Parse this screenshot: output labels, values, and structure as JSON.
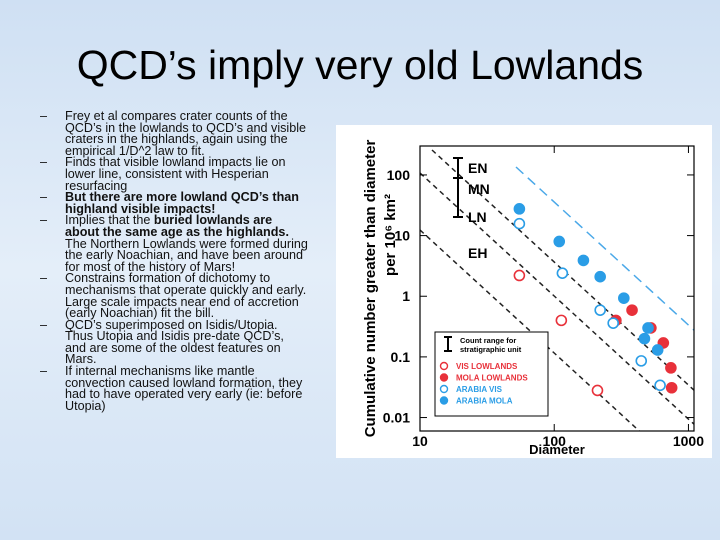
{
  "slide": {
    "title": "QCD’s imply very old Lowlands",
    "bullets": [
      [
        {
          "text": "Frey et al compares crater counts of the QCD’s in the lowlands to QCD’s and visible craters in the highlands, again using the empirical 1/D^2 law to fit."
        }
      ],
      [
        {
          "text": "Finds that visible lowland impacts lie on lower line, consistent with Hesperian resurfacing"
        }
      ],
      [
        {
          "text": "But there are more lowland QCD’s than highland visible impacts!",
          "bold": true
        }
      ],
      [
        {
          "text": "Implies that the "
        },
        {
          "text": "buried lowlands are about the same age as the highlands.",
          "bold": true
        },
        {
          "text": " The Northern Lowlands were formed during the early Noachian, and have been around for most of the history of Mars!"
        }
      ],
      [
        {
          "text": "Constrains formation of dichotomy to mechanisms that operate quickly and early.  Large scale impacts near end of accretion (early Noachian) fit the bill."
        }
      ],
      [
        {
          "text": "QCD’s superimposed on Isidis/Utopia.  Thus Utopia and Isidis pre-date QCD’s, and are some of the oldest features on Mars."
        }
      ],
      [
        {
          "text": "If internal mechanisms like mantle convection caused lowland formation, they had to have operated very early (ie: before Utopia)"
        }
      ]
    ]
  },
  "chart_data": {
    "type": "scatter",
    "x_label": "Diameter",
    "y_label": "Cumulative number greater than diameter",
    "y_label_2": "per 10⁶ km²",
    "x_log": true,
    "y_log": true,
    "xlim": [
      10,
      1100
    ],
    "ylim": [
      0.006,
      300
    ],
    "xticks": [
      10,
      100,
      1000
    ],
    "yticks": [
      0.01,
      0.1,
      1,
      10,
      100
    ],
    "annotations": [
      "EN",
      "MN",
      "LN",
      "EH"
    ],
    "legend_note": [
      "Count range for",
      "stratigraphic unit"
    ],
    "series": [
      {
        "name": "VIS LOWLANDS",
        "color": "#e8313a",
        "filled": false,
        "x": [
          55,
          113,
          210
        ],
        "values": [
          2.2,
          0.4,
          0.028
        ]
      },
      {
        "name": "MOLA LOWLANDS",
        "color": "#e8313a",
        "filled": true,
        "x": [
          288,
          380,
          525,
          650,
          740,
          750
        ],
        "values": [
          0.4,
          0.59,
          0.3,
          0.17,
          0.066,
          0.031
        ]
      },
      {
        "name": "ARABIA VIS",
        "color": "#2a9de6",
        "filled": false,
        "x": [
          55,
          115,
          220,
          275,
          445,
          615
        ],
        "values": [
          15.7,
          2.4,
          0.59,
          0.36,
          0.086,
          0.034
        ]
      },
      {
        "name": "ARABIA MOLA",
        "color": "#2a9de6",
        "filled": true,
        "x": [
          55,
          109,
          165,
          220,
          330,
          470,
          500,
          590
        ],
        "values": [
          27.6,
          8,
          3.9,
          2.1,
          0.93,
          0.2,
          0.3,
          0.13
        ]
      }
    ]
  }
}
